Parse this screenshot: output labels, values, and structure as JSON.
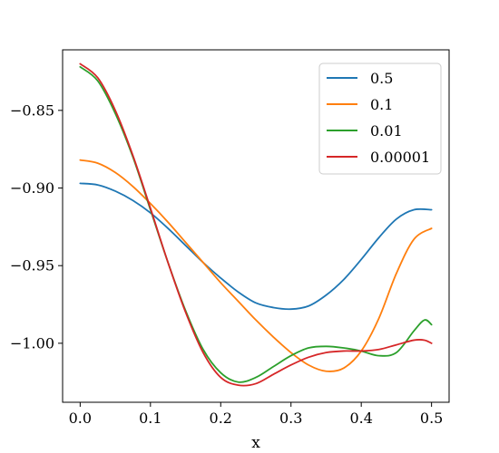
{
  "chart_data": {
    "type": "line",
    "xlabel": "x",
    "ylabel": "",
    "xlim": [
      -0.025,
      0.525
    ],
    "ylim": [
      -1.038,
      -0.811
    ],
    "xticks": [
      0.0,
      0.1,
      0.2,
      0.3,
      0.4,
      0.5
    ],
    "xtick_labels": [
      "0.0",
      "0.1",
      "0.2",
      "0.3",
      "0.4",
      "0.5"
    ],
    "yticks": [
      -0.85,
      -0.9,
      -0.95,
      -1.0
    ],
    "ytick_labels": [
      "−0.85",
      "−0.90",
      "−0.95",
      "−1.00"
    ],
    "grid": false,
    "legend_position": "top-right",
    "series": [
      {
        "name": "0.5",
        "color": "#1f77b4",
        "x": [
          0.0,
          0.025,
          0.05,
          0.075,
          0.1,
          0.125,
          0.15,
          0.175,
          0.2,
          0.225,
          0.25,
          0.275,
          0.3,
          0.325,
          0.35,
          0.375,
          0.4,
          0.425,
          0.45,
          0.475,
          0.5
        ],
        "y": [
          -0.897,
          -0.898,
          -0.902,
          -0.908,
          -0.916,
          -0.926,
          -0.937,
          -0.948,
          -0.958,
          -0.967,
          -0.974,
          -0.977,
          -0.978,
          -0.976,
          -0.969,
          -0.959,
          -0.946,
          -0.932,
          -0.92,
          -0.914,
          -0.914
        ]
      },
      {
        "name": "0.1",
        "color": "#ff7f0e",
        "x": [
          0.0,
          0.025,
          0.05,
          0.075,
          0.1,
          0.125,
          0.15,
          0.175,
          0.2,
          0.225,
          0.25,
          0.275,
          0.3,
          0.325,
          0.35,
          0.375,
          0.4,
          0.425,
          0.45,
          0.475,
          0.5
        ],
        "y": [
          -0.882,
          -0.884,
          -0.89,
          -0.899,
          -0.91,
          -0.922,
          -0.935,
          -0.948,
          -0.961,
          -0.973,
          -0.985,
          -0.996,
          -1.006,
          -1.014,
          -1.018,
          -1.016,
          -1.005,
          -0.984,
          -0.955,
          -0.933,
          -0.926
        ]
      },
      {
        "name": "0.01",
        "color": "#2ca02c",
        "x": [
          0.0,
          0.025,
          0.05,
          0.075,
          0.1,
          0.125,
          0.15,
          0.175,
          0.2,
          0.225,
          0.25,
          0.275,
          0.3,
          0.325,
          0.35,
          0.375,
          0.4,
          0.425,
          0.45,
          0.475,
          0.49,
          0.5
        ],
        "y": [
          -0.822,
          -0.831,
          -0.852,
          -0.88,
          -0.914,
          -0.948,
          -0.979,
          -1.004,
          -1.019,
          -1.025,
          -1.022,
          -1.015,
          -1.008,
          -1.003,
          -1.002,
          -1.003,
          -1.005,
          -1.008,
          -1.006,
          -0.992,
          -0.985,
          -0.988
        ]
      },
      {
        "name": "0.00001",
        "color": "#d62728",
        "x": [
          0.0,
          0.025,
          0.05,
          0.075,
          0.1,
          0.125,
          0.15,
          0.175,
          0.2,
          0.225,
          0.25,
          0.275,
          0.3,
          0.325,
          0.35,
          0.375,
          0.4,
          0.425,
          0.45,
          0.475,
          0.49,
          0.5
        ],
        "y": [
          -0.82,
          -0.829,
          -0.85,
          -0.879,
          -0.913,
          -0.948,
          -0.98,
          -1.006,
          -1.022,
          -1.027,
          -1.026,
          -1.02,
          -1.014,
          -1.009,
          -1.006,
          -1.005,
          -1.005,
          -1.004,
          -1.001,
          -0.998,
          -0.998,
          -1.0
        ]
      }
    ]
  }
}
